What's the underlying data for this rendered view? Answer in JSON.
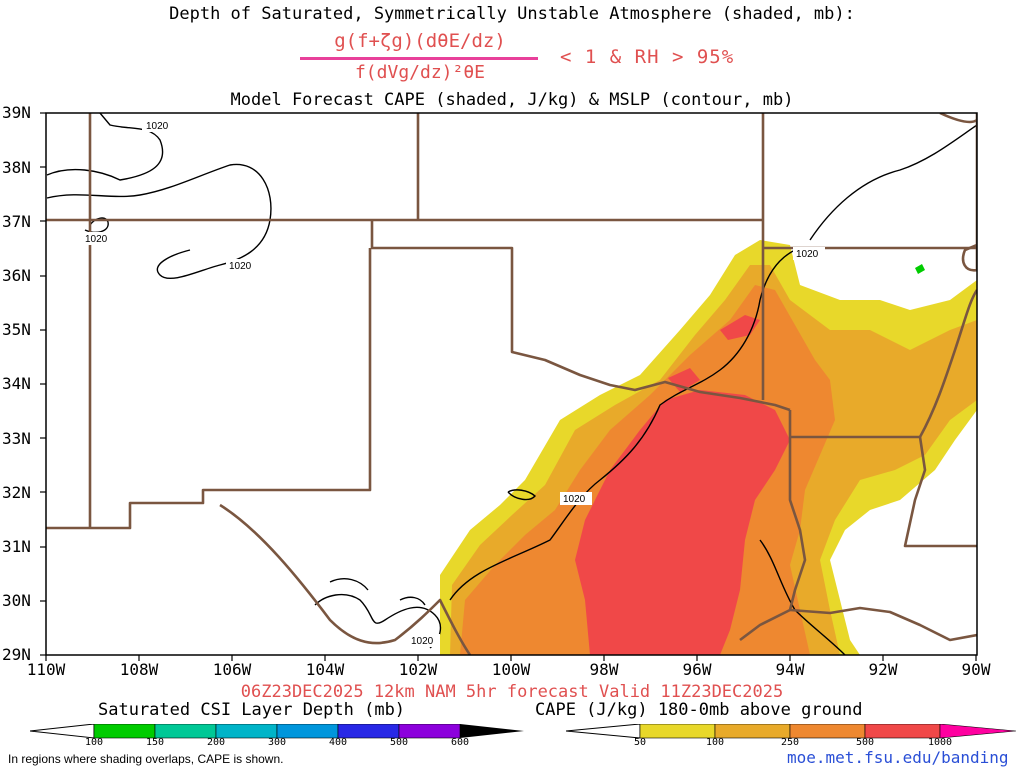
{
  "title_line1": "Depth of Saturated, Symmetrically Unstable Atmosphere (shaded, mb):",
  "formula": {
    "numerator": "g(f+ζg)(dθE/dz)",
    "denominator": "f(dVg/dz)²θE",
    "condition": "< 1 & RH > 95%"
  },
  "title_line3": "Model Forecast CAPE (shaded, J/kg) & MSLP (contour, mb)",
  "lat_labels": [
    "39N",
    "38N",
    "37N",
    "36N",
    "35N",
    "34N",
    "33N",
    "32N",
    "31N",
    "30N",
    "29N"
  ],
  "lon_labels": [
    "110W",
    "108W",
    "106W",
    "104W",
    "102W",
    "100W",
    "98W",
    "96W",
    "94W",
    "92W",
    "90W"
  ],
  "contour_labels": [
    "1020",
    "1020",
    "1020",
    "1020",
    "1020",
    "1020"
  ],
  "valid_line": "06Z23DEC2025 12km NAM 5hr forecast Valid 11Z23DEC2025",
  "colorbar_csi": {
    "title": "Saturated CSI Layer Depth (mb)",
    "ticks": [
      "100",
      "150",
      "200",
      "300",
      "400",
      "500",
      "600"
    ],
    "colors": [
      "#00cc00",
      "#00c896",
      "#00b4c8",
      "#0096dc",
      "#2828e6",
      "#8c00dc",
      "#000000"
    ]
  },
  "colorbar_cape": {
    "title": "CAPE (J/kg) 180-0mb above ground",
    "ticks": [
      "50",
      "100",
      "250",
      "500",
      "1000"
    ],
    "colors": [
      "#e8d82a",
      "#e8aa2a",
      "#ee8830",
      "#f04848",
      "#ff00a0"
    ]
  },
  "footnote": "In regions where shading overlaps, CAPE is shown.",
  "url": "moe.met.fsu.edu/banding",
  "colors": {
    "border": "#7a5640",
    "cape_50": "#e8d82a",
    "cape_100": "#e8aa2a",
    "cape_250": "#ee8830",
    "cape_500": "#f04848",
    "title_red": "#e05050"
  }
}
